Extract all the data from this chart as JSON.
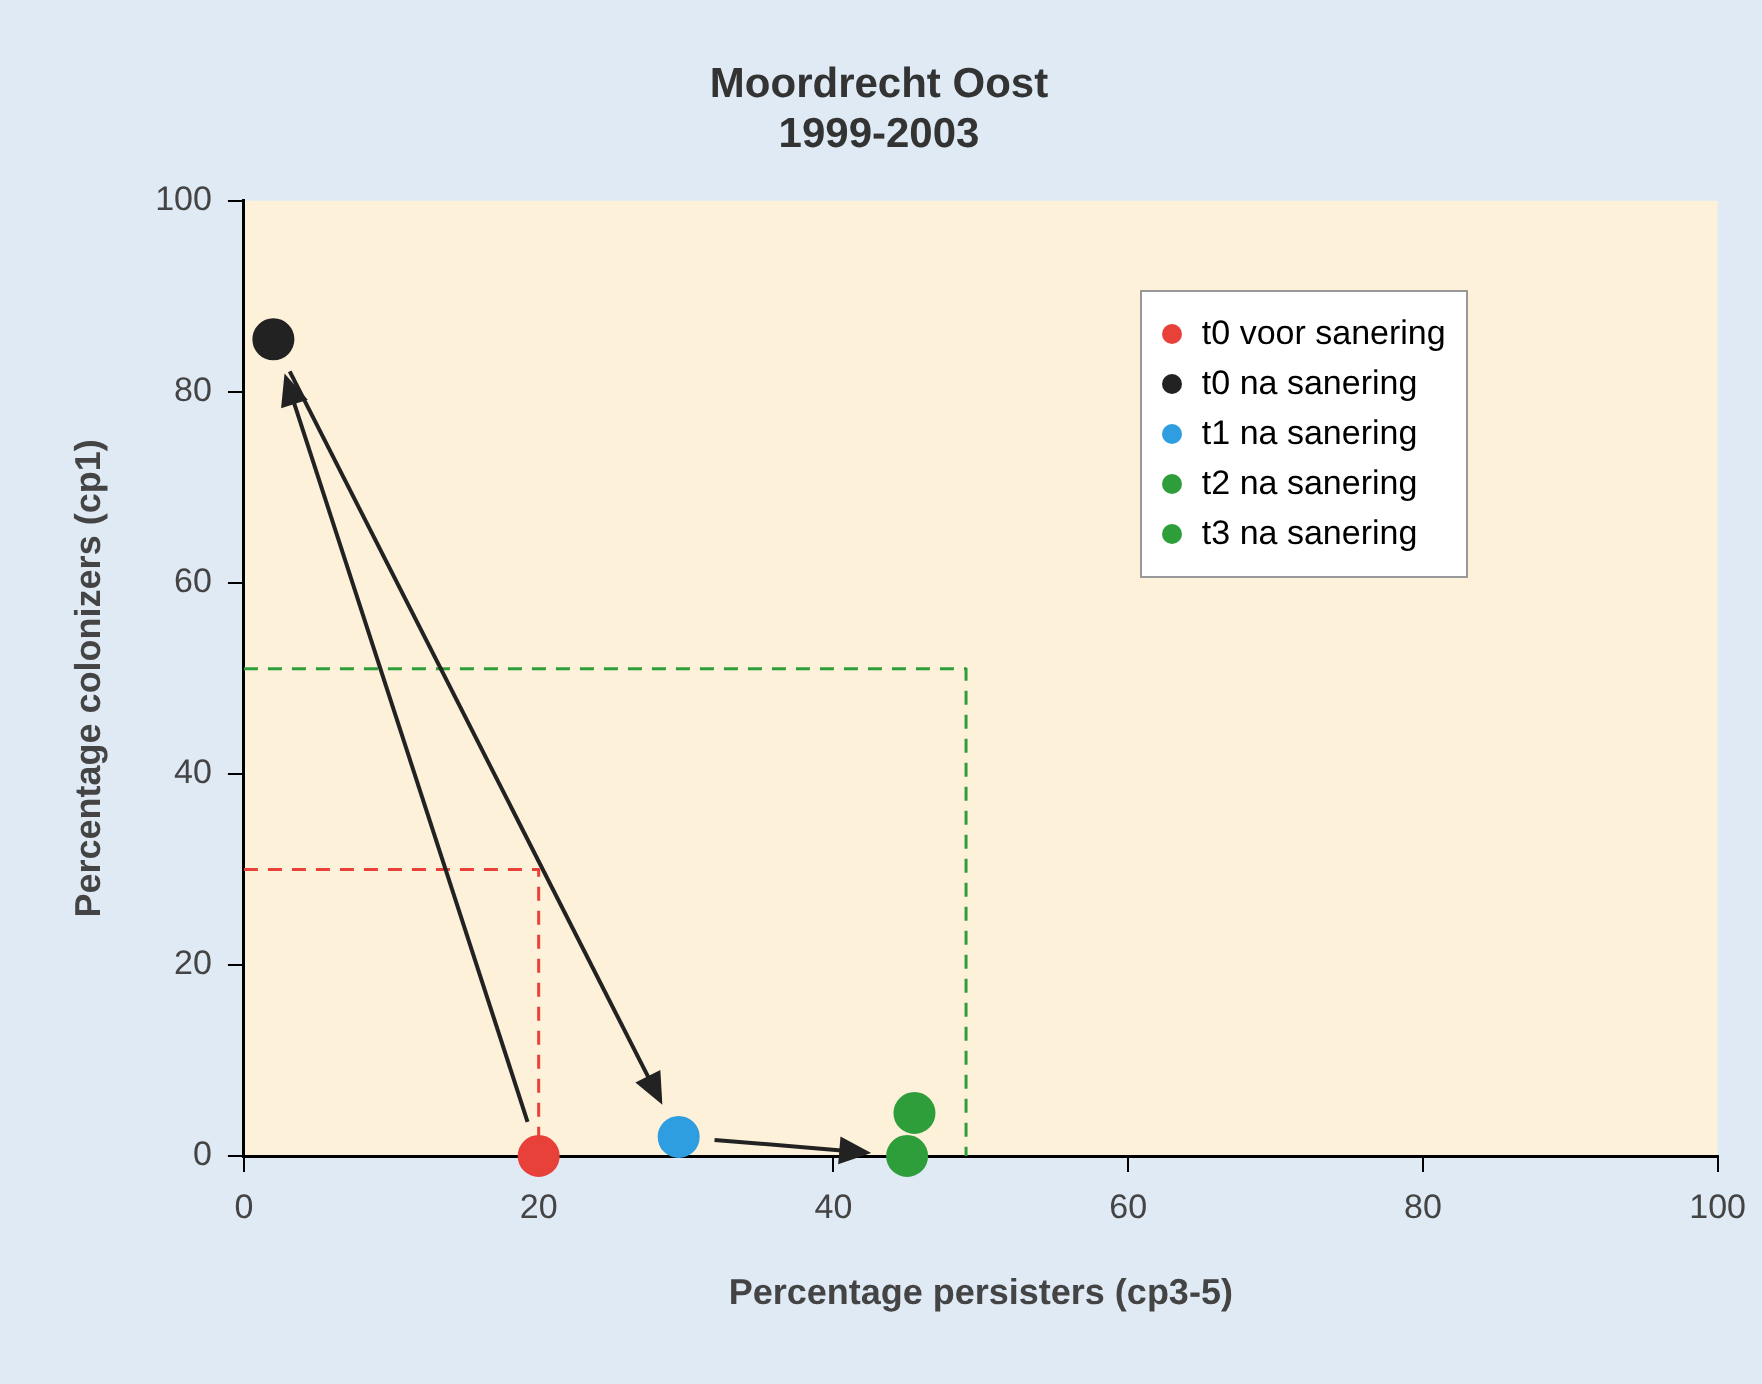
{
  "chart_data": {
    "type": "scatter",
    "title": "Moordrecht Oost\n1999-2003",
    "xlabel": "Percentage persisters (cp3-5)",
    "ylabel": "Percentage colonizers (cp1)",
    "xlim": [
      0,
      100
    ],
    "xticks": [
      0,
      20,
      40,
      60,
      80,
      100
    ],
    "ylim": [
      0,
      100
    ],
    "yticks": [
      0,
      20,
      40,
      60,
      80,
      100
    ],
    "grid": false,
    "legend": "top right",
    "marker": "circle",
    "series": [
      {
        "name": "t0 voor sanering",
        "color": "#e8413a",
        "x": [
          20
        ],
        "values": [
          0
        ]
      },
      {
        "name": "t0 na sanering",
        "color": "#222222",
        "x": [
          2
        ],
        "values": [
          85.5
        ]
      },
      {
        "name": "t1 na sanering",
        "color": "#2f9ee0",
        "x": [
          29.5
        ],
        "values": [
          2
        ]
      },
      {
        "name": "t2 na sanering",
        "color": "#2e9e3a",
        "x": [
          45
        ],
        "values": [
          0
        ]
      },
      {
        "name": "t3 na sanering",
        "color": "#2e9e3a",
        "x": [
          45.5
        ],
        "values": [
          4.5
        ]
      },
      {
        "type": "line",
        "color": "#e8413a",
        "line_style": "dashed",
        "marker": "none",
        "x": [
          0,
          20,
          20
        ],
        "values": [
          30,
          30,
          0
        ]
      },
      {
        "type": "line",
        "color": "#2e9e3a",
        "line_style": "dashed",
        "marker": "none",
        "x": [
          0,
          49,
          49
        ],
        "values": [
          51,
          51,
          0
        ]
      }
    ]
  }
}
